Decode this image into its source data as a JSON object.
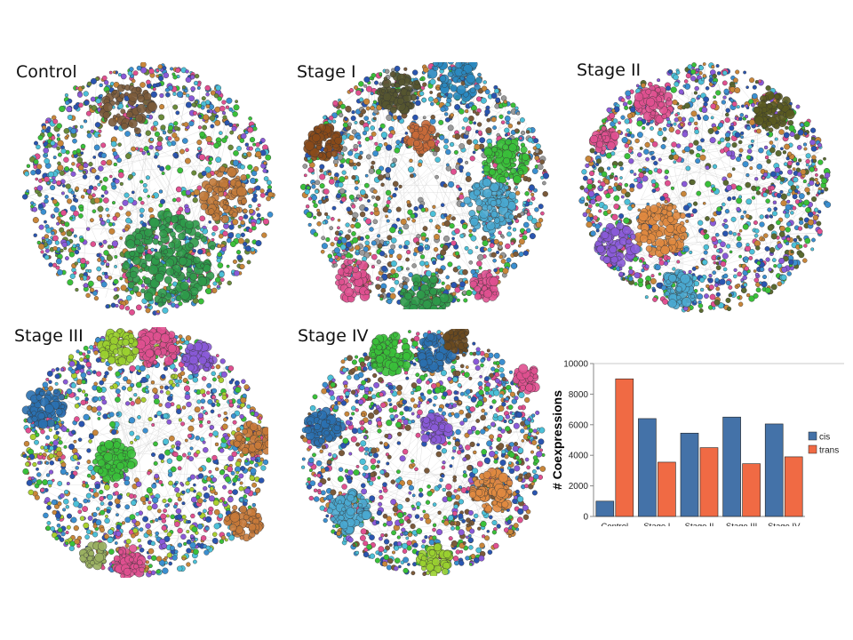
{
  "panels": [
    {
      "label": "Control",
      "palette": [
        "#3ac03a",
        "#3b8fd0",
        "#c8863a",
        "#4cc0d8",
        "#e05090",
        "#8a5ad8",
        "#6a8a3a",
        "#2a55b0"
      ],
      "clusters": [
        [
          "#2f9a4a",
          0.58,
          0.78,
          0.18,
          220
        ],
        [
          "#c27a3a",
          0.8,
          0.52,
          0.1,
          90
        ],
        [
          "#7a5a3a",
          0.42,
          0.18,
          0.1,
          60
        ]
      ]
    },
    {
      "label": "Stage I",
      "palette": [
        "#3ac03a",
        "#3b8fd0",
        "#c8863a",
        "#4cc0d8",
        "#e05090",
        "#7a5a3a",
        "#9a9a9a",
        "#2a55b0"
      ],
      "clusters": [
        [
          "#8a4a1a",
          0.1,
          0.33,
          0.07,
          70
        ],
        [
          "#555530",
          0.4,
          0.12,
          0.08,
          70
        ],
        [
          "#2a88c0",
          0.62,
          0.06,
          0.1,
          70
        ],
        [
          "#3ac03a",
          0.82,
          0.4,
          0.09,
          90
        ],
        [
          "#4aa8d0",
          0.76,
          0.58,
          0.1,
          100
        ],
        [
          "#c86a3a",
          0.48,
          0.3,
          0.06,
          50
        ],
        [
          "#e05090",
          0.22,
          0.88,
          0.08,
          60
        ],
        [
          "#2f9a4a",
          0.5,
          0.97,
          0.1,
          90
        ],
        [
          "#e05090",
          0.74,
          0.91,
          0.05,
          40
        ]
      ]
    },
    {
      "label": "Stage II",
      "palette": [
        "#3ac03a",
        "#3b8fd0",
        "#c8863a",
        "#4cc0d8",
        "#e05090",
        "#8a5ad8",
        "#5a6a30",
        "#2a55b0"
      ],
      "clusters": [
        [
          "#5a5a20",
          0.77,
          0.2,
          0.07,
          70
        ],
        [
          "#e05090",
          0.3,
          0.17,
          0.07,
          60
        ],
        [
          "#e05090",
          0.11,
          0.31,
          0.05,
          40
        ],
        [
          "#e08a40",
          0.33,
          0.66,
          0.1,
          120
        ],
        [
          "#8a5ad8",
          0.15,
          0.73,
          0.08,
          60
        ],
        [
          "#4aa8d0",
          0.4,
          0.9,
          0.07,
          60
        ]
      ]
    },
    {
      "label": "Stage III",
      "palette": [
        "#3ac03a",
        "#3b8fd0",
        "#c8863a",
        "#4cc0d8",
        "#e05090",
        "#8a5ad8",
        "#aad030",
        "#2a55b0"
      ],
      "clusters": [
        [
          "#e05090",
          0.55,
          0.08,
          0.08,
          90
        ],
        [
          "#9ad030",
          0.4,
          0.08,
          0.07,
          70
        ],
        [
          "#3ac03a",
          0.38,
          0.53,
          0.08,
          90
        ],
        [
          "#2a70b0",
          0.1,
          0.32,
          0.08,
          70
        ],
        [
          "#c87a3a",
          0.94,
          0.45,
          0.07,
          60
        ],
        [
          "#8a5ad8",
          0.72,
          0.12,
          0.06,
          50
        ],
        [
          "#e05090",
          0.44,
          0.94,
          0.06,
          60
        ],
        [
          "#9ab060",
          0.3,
          0.91,
          0.05,
          40
        ],
        [
          "#c87a3a",
          0.9,
          0.78,
          0.07,
          60
        ]
      ]
    },
    {
      "label": "Stage IV",
      "palette": [
        "#3ac03a",
        "#3b8fd0",
        "#c8863a",
        "#4cc0d8",
        "#e05090",
        "#8a5ad8",
        "#7a5a3a",
        "#2a55b0"
      ],
      "clusters": [
        [
          "#3ac03a",
          0.37,
          0.1,
          0.08,
          80
        ],
        [
          "#2a70b0",
          0.55,
          0.1,
          0.07,
          70
        ],
        [
          "#6a4a20",
          0.64,
          0.05,
          0.05,
          40
        ],
        [
          "#2a70b0",
          0.1,
          0.4,
          0.07,
          70
        ],
        [
          "#e08a40",
          0.78,
          0.66,
          0.08,
          90
        ],
        [
          "#8a5ad8",
          0.55,
          0.4,
          0.06,
          50
        ],
        [
          "#4aa8d0",
          0.2,
          0.74,
          0.08,
          80
        ],
        [
          "#e05090",
          0.92,
          0.2,
          0.05,
          40
        ],
        [
          "#9ad030",
          0.55,
          0.94,
          0.06,
          50
        ]
      ]
    }
  ],
  "colors": {
    "cis": "#4472a8",
    "trans": "#f06a44"
  },
  "chart_data": {
    "type": "bar",
    "ylabel": "# Coexpressions",
    "categories": [
      "Control",
      "Stage I",
      "Stage II",
      "Stage III",
      "Stage IV"
    ],
    "series": [
      {
        "name": "cis",
        "values": [
          1000,
          6400,
          5450,
          6500,
          6050
        ]
      },
      {
        "name": "trans",
        "values": [
          9000,
          3550,
          4500,
          3450,
          3900
        ]
      }
    ],
    "ylim": [
      0,
      10000
    ],
    "yticks": [
      0,
      2000,
      4000,
      6000,
      8000,
      10000
    ],
    "legend": "right",
    "grid": false
  }
}
